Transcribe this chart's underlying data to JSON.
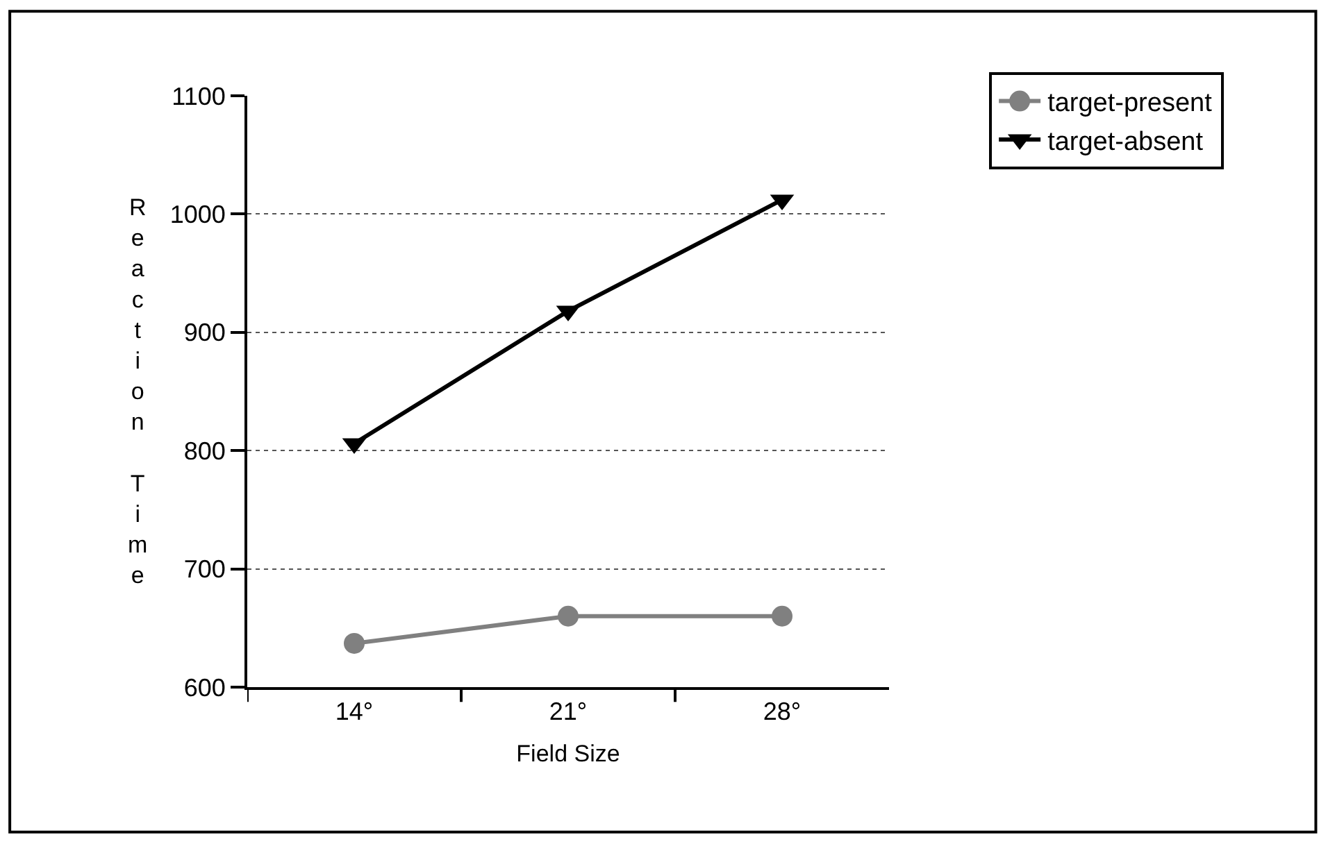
{
  "chart_data": {
    "type": "line",
    "xlabel": "Field Size",
    "ylabel": "Reaction Time",
    "categories": [
      "14°",
      "21°",
      "28°"
    ],
    "series": [
      {
        "name": "target-present",
        "color": "#808080",
        "marker": "circle",
        "values": [
          637,
          660,
          660
        ]
      },
      {
        "name": "target-absent",
        "color": "#000000",
        "marker": "triangle",
        "values": [
          806,
          918,
          1012
        ]
      }
    ],
    "ylim": [
      600,
      1100
    ],
    "yticks": [
      600,
      700,
      800,
      900,
      1000,
      1100
    ],
    "grid": "y",
    "legend": "top right"
  }
}
